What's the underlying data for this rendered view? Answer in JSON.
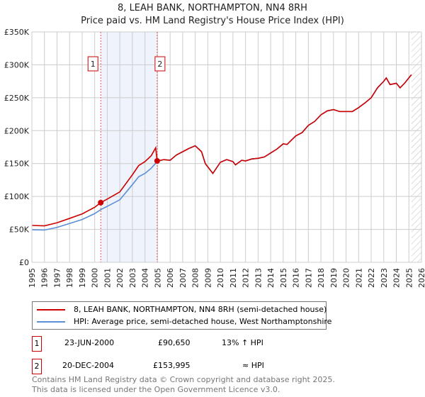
{
  "title": "8, LEAH BANK, NORTHAMPTON, NN4 8RH",
  "subtitle": "Price paid vs. HM Land Registry's House Price Index (HPI)",
  "chart_data": {
    "type": "line",
    "xlim": [
      1995,
      2026
    ],
    "ylim": [
      0,
      350000
    ],
    "yticks": [
      {
        "v": 0,
        "label": "£0"
      },
      {
        "v": 50000,
        "label": "£50K"
      },
      {
        "v": 100000,
        "label": "£100K"
      },
      {
        "v": 150000,
        "label": "£150K"
      },
      {
        "v": 200000,
        "label": "£200K"
      },
      {
        "v": 250000,
        "label": "£250K"
      },
      {
        "v": 300000,
        "label": "£300K"
      },
      {
        "v": 350000,
        "label": "£350K"
      }
    ],
    "xticks": [
      "1995",
      "1996",
      "1997",
      "1998",
      "1999",
      "2000",
      "2001",
      "2002",
      "2003",
      "2004",
      "2005",
      "2006",
      "2007",
      "2008",
      "2009",
      "2010",
      "2011",
      "2012",
      "2013",
      "2014",
      "2015",
      "2016",
      "2017",
      "2018",
      "2019",
      "2020",
      "2021",
      "2022",
      "2023",
      "2024",
      "2025",
      "2026"
    ],
    "shaded_period": [
      2000.48,
      2004.97
    ],
    "forecast_hatch_from": 2025.2,
    "series": [
      {
        "name": "8, LEAH BANK, NORTHAMPTON, NN4 8RH (semi-detached house)",
        "color": "#cc0000",
        "x": [
          1995,
          1996,
          1997,
          1998,
          1999,
          2000,
          2000.48,
          2001,
          2002,
          2003,
          2003.5,
          2004,
          2004.5,
          2004.85,
          2004.97,
          2005.5,
          2006,
          2006.5,
          2007,
          2007.5,
          2008,
          2008.5,
          2008.8,
          2009.4,
          2010,
          2010.5,
          2011,
          2011.2,
          2011.7,
          2012,
          2012.5,
          2013,
          2013.5,
          2014,
          2014.5,
          2015,
          2015.3,
          2016,
          2016.5,
          2017,
          2017.5,
          2018,
          2018.5,
          2019,
          2019.5,
          2020,
          2020.5,
          2021,
          2021.5,
          2022,
          2022.5,
          2023,
          2023.2,
          2023.5,
          2024,
          2024.3,
          2024.7,
          2025.2
        ],
        "y": [
          56000,
          55400,
          60000,
          66700,
          73500,
          83600,
          90650,
          96000,
          107000,
          133000,
          147000,
          153000,
          162000,
          174000,
          153995,
          156000,
          155000,
          163000,
          168000,
          173000,
          177000,
          168000,
          150000,
          135000,
          152000,
          156000,
          153000,
          148000,
          155000,
          154000,
          157000,
          158000,
          160000,
          166000,
          172000,
          180000,
          179000,
          192000,
          197000,
          208000,
          214000,
          224000,
          230000,
          232000,
          229000,
          229000,
          229000,
          235000,
          242000,
          250000,
          265000,
          275000,
          280000,
          270000,
          272000,
          265000,
          273000,
          285000
        ]
      },
      {
        "name": "HPI: Average price, semi-detached house, West Northamptonshire",
        "color": "#5b8fd6",
        "x": [
          1995,
          1996,
          1997,
          1998,
          1999,
          2000,
          2000.48,
          2001,
          2002,
          2003,
          2003.5,
          2004,
          2004.5,
          2004.97,
          2005.5,
          2006,
          2006.5,
          2007,
          2007.5,
          2008,
          2008.5,
          2008.8,
          2009.4,
          2010,
          2010.5,
          2011,
          2011.2,
          2011.7,
          2012,
          2012.5,
          2013,
          2013.5,
          2014,
          2014.5,
          2015,
          2015.3,
          2016,
          2016.5,
          2017,
          2017.5,
          2018,
          2018.5,
          2019,
          2019.5,
          2020,
          2020.5,
          2021,
          2021.5,
          2022,
          2022.5,
          2023,
          2023.2,
          2023.5,
          2024,
          2024.3,
          2024.7,
          2025.2
        ],
        "y": [
          49500,
          49000,
          53000,
          59000,
          65000,
          74000,
          80000,
          85000,
          95000,
          118000,
          130000,
          135000,
          143000,
          153000,
          156000,
          155000,
          163000,
          168000,
          173000,
          177000,
          168000,
          150000,
          135000,
          152000,
          156000,
          153000,
          148000,
          155000,
          154000,
          157000,
          158000,
          160000,
          166000,
          172000,
          180000,
          179000,
          192000,
          197000,
          208000,
          214000,
          224000,
          230000,
          232000,
          229000,
          229000,
          229000,
          235000,
          242000,
          250000,
          265000,
          275000,
          280000,
          270000,
          272000,
          265000,
          273000,
          285000
        ]
      }
    ],
    "sales": [
      {
        "label": "1",
        "x": 2000.48,
        "y": 90650
      },
      {
        "label": "2",
        "x": 2004.97,
        "y": 153995
      }
    ]
  },
  "legend": {
    "items": [
      {
        "label": "8, LEAH BANK, NORTHAMPTON, NN4 8RH (semi-detached house)",
        "color": "#cc0000"
      },
      {
        "label": "HPI: Average price, semi-detached house, West Northamptonshire",
        "color": "#5b8fd6"
      }
    ]
  },
  "transactions": [
    {
      "num": "1",
      "date": "23-JUN-2000",
      "price": "£90,650",
      "hpi": "13% ↑ HPI"
    },
    {
      "num": "2",
      "date": "20-DEC-2004",
      "price": "£153,995",
      "hpi": "≈ HPI"
    }
  ],
  "footer": {
    "line1": "Contains HM Land Registry data © Crown copyright and database right 2025.",
    "line2": "This data is licensed under the Open Government Licence v3.0."
  }
}
